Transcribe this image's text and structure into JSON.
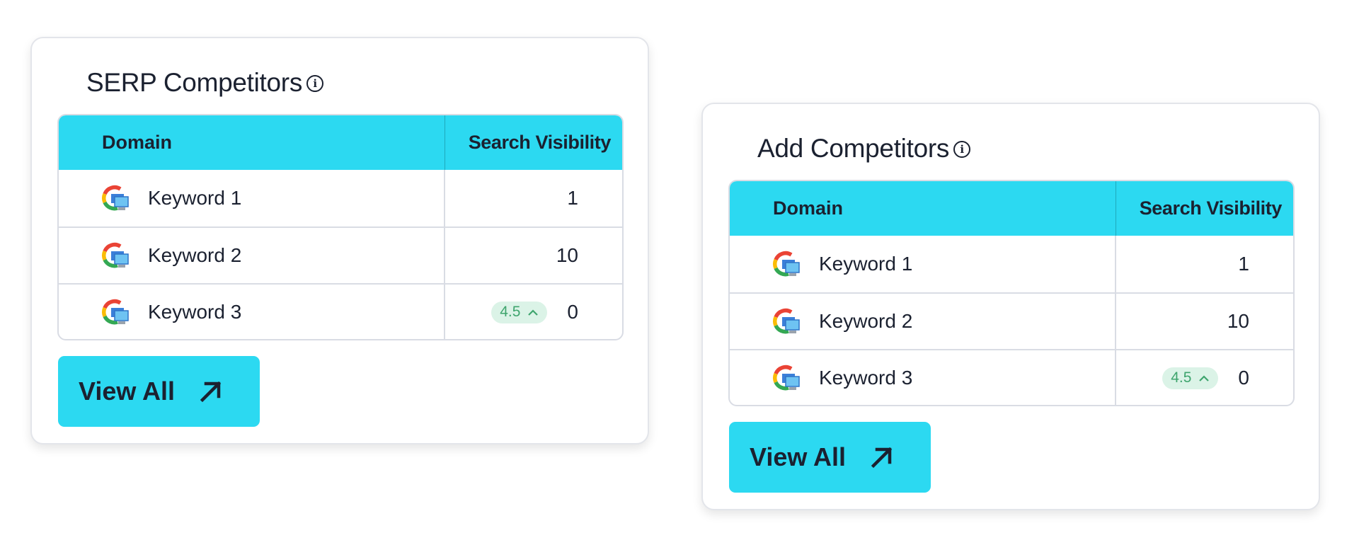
{
  "cards": [
    {
      "title": "SERP Competitors",
      "columns": [
        "Domain",
        "Search Visibility"
      ],
      "rows": [
        {
          "keyword": "Keyword 1",
          "value": "1",
          "badge": null
        },
        {
          "keyword": "Keyword 2",
          "value": "10",
          "badge": null
        },
        {
          "keyword": "Keyword 3",
          "value": "0",
          "badge": "4.5"
        }
      ],
      "button_label": "View All"
    },
    {
      "title": "Add Competitors",
      "columns": [
        "Domain",
        "Search Visibility"
      ],
      "rows": [
        {
          "keyword": "Keyword 1",
          "value": "1",
          "badge": null
        },
        {
          "keyword": "Keyword 2",
          "value": "10",
          "badge": null
        },
        {
          "keyword": "Keyword 3",
          "value": "0",
          "badge": "4.5"
        }
      ],
      "button_label": "View All"
    }
  ],
  "icons": {
    "info": "info-circle-icon",
    "row": "google-desktop-icon",
    "badge": "chevron-up-icon",
    "button": "arrow-up-right-icon"
  },
  "colors": {
    "accent": "#2cd9f1",
    "badge_bg": "#dbf3e7",
    "badge_text": "#3fa56e",
    "text": "#1b2130"
  }
}
